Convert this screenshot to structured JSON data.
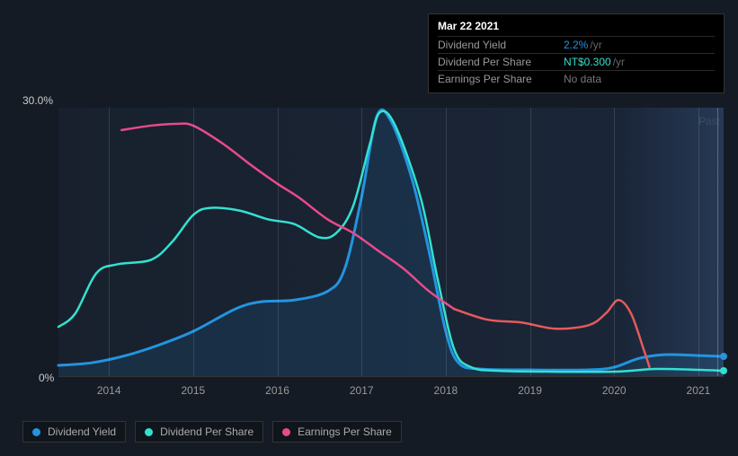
{
  "tooltip": {
    "date": "Mar 22 2021",
    "rows": [
      {
        "label": "Dividend Yield",
        "value": "2.2%",
        "unit": "/yr",
        "value_color": "#2394df"
      },
      {
        "label": "Dividend Per Share",
        "value": "NT$0.300",
        "unit": "/yr",
        "value_color": "#33e1d0"
      },
      {
        "label": "Earnings Per Share",
        "value": "No data",
        "unit": "",
        "value_color": "#777"
      }
    ]
  },
  "chart": {
    "type": "line",
    "ylim": [
      0,
      30
    ],
    "y_top_label": "30.0%",
    "y_bot_label": "0%",
    "past_label": "Past",
    "x_years": [
      2014,
      2015,
      2016,
      2017,
      2018,
      2019,
      2020,
      2021
    ],
    "x_range": [
      2013.4,
      2021.3
    ],
    "cursor_x": 2021.22,
    "background": "#151b24",
    "grid_color": "rgba(255,255,255,0.12)",
    "series": [
      {
        "name": "Dividend Yield",
        "color": "#2394df",
        "width": 3,
        "fill": true,
        "points": [
          [
            2013.4,
            1.2
          ],
          [
            2013.8,
            1.5
          ],
          [
            2014.2,
            2.3
          ],
          [
            2014.6,
            3.5
          ],
          [
            2015.0,
            5.0
          ],
          [
            2015.5,
            7.5
          ],
          [
            2015.8,
            8.3
          ],
          [
            2016.2,
            8.5
          ],
          [
            2016.6,
            9.5
          ],
          [
            2016.8,
            12.0
          ],
          [
            2017.0,
            20.0
          ],
          [
            2017.18,
            29.0
          ],
          [
            2017.35,
            28.5
          ],
          [
            2017.6,
            22.0
          ],
          [
            2017.8,
            14.0
          ],
          [
            2018.0,
            5.0
          ],
          [
            2018.15,
            1.5
          ],
          [
            2018.4,
            0.8
          ],
          [
            2019.0,
            0.7
          ],
          [
            2019.7,
            0.7
          ],
          [
            2020.0,
            1.0
          ],
          [
            2020.3,
            2.0
          ],
          [
            2020.6,
            2.4
          ],
          [
            2021.0,
            2.3
          ],
          [
            2021.3,
            2.2
          ]
        ]
      },
      {
        "name": "Dividend Per Share",
        "color": "#33e1d0",
        "width": 2.5,
        "fill": false,
        "points": [
          [
            2013.4,
            5.5
          ],
          [
            2013.6,
            7.0
          ],
          [
            2013.85,
            11.5
          ],
          [
            2014.1,
            12.5
          ],
          [
            2014.5,
            13.0
          ],
          [
            2014.75,
            15.0
          ],
          [
            2015.0,
            18.0
          ],
          [
            2015.2,
            18.8
          ],
          [
            2015.55,
            18.5
          ],
          [
            2015.9,
            17.5
          ],
          [
            2016.2,
            17.0
          ],
          [
            2016.5,
            15.5
          ],
          [
            2016.7,
            16.0
          ],
          [
            2016.9,
            19.0
          ],
          [
            2017.1,
            26.0
          ],
          [
            2017.22,
            29.5
          ],
          [
            2017.4,
            28.0
          ],
          [
            2017.7,
            20.0
          ],
          [
            2017.9,
            11.0
          ],
          [
            2018.1,
            3.0
          ],
          [
            2018.3,
            1.0
          ],
          [
            2018.6,
            0.6
          ],
          [
            2019.2,
            0.5
          ],
          [
            2020.0,
            0.5
          ],
          [
            2020.5,
            0.8
          ],
          [
            2021.0,
            0.7
          ],
          [
            2021.3,
            0.6
          ]
        ]
      },
      {
        "name": "Earnings Per Share",
        "color": "#e94a8a",
        "color_b": "#e65a5a",
        "color_switch_x": 2018.1,
        "width": 2.5,
        "fill": false,
        "points": [
          [
            2014.15,
            27.5
          ],
          [
            2014.5,
            28.0
          ],
          [
            2014.8,
            28.2
          ],
          [
            2015.0,
            28.0
          ],
          [
            2015.35,
            26.0
          ],
          [
            2015.7,
            23.5
          ],
          [
            2016.0,
            21.5
          ],
          [
            2016.25,
            20.0
          ],
          [
            2016.6,
            17.5
          ],
          [
            2016.9,
            16.0
          ],
          [
            2017.2,
            14.0
          ],
          [
            2017.5,
            12.0
          ],
          [
            2017.8,
            9.5
          ],
          [
            2018.1,
            7.5
          ],
          [
            2018.5,
            6.3
          ],
          [
            2018.9,
            6.0
          ],
          [
            2019.3,
            5.3
          ],
          [
            2019.7,
            5.7
          ],
          [
            2019.9,
            7.0
          ],
          [
            2020.05,
            8.5
          ],
          [
            2020.2,
            7.0
          ],
          [
            2020.35,
            3.0
          ],
          [
            2020.42,
            1.0
          ]
        ]
      }
    ],
    "legend_items": [
      {
        "label": "Dividend Yield",
        "color": "#2394df"
      },
      {
        "label": "Dividend Per Share",
        "color": "#33e1d0"
      },
      {
        "label": "Earnings Per Share",
        "color": "#e94a8a"
      }
    ]
  },
  "style": {
    "font_size_axis": 12,
    "font_size_legend": 12,
    "font_size_tooltip": 12
  }
}
